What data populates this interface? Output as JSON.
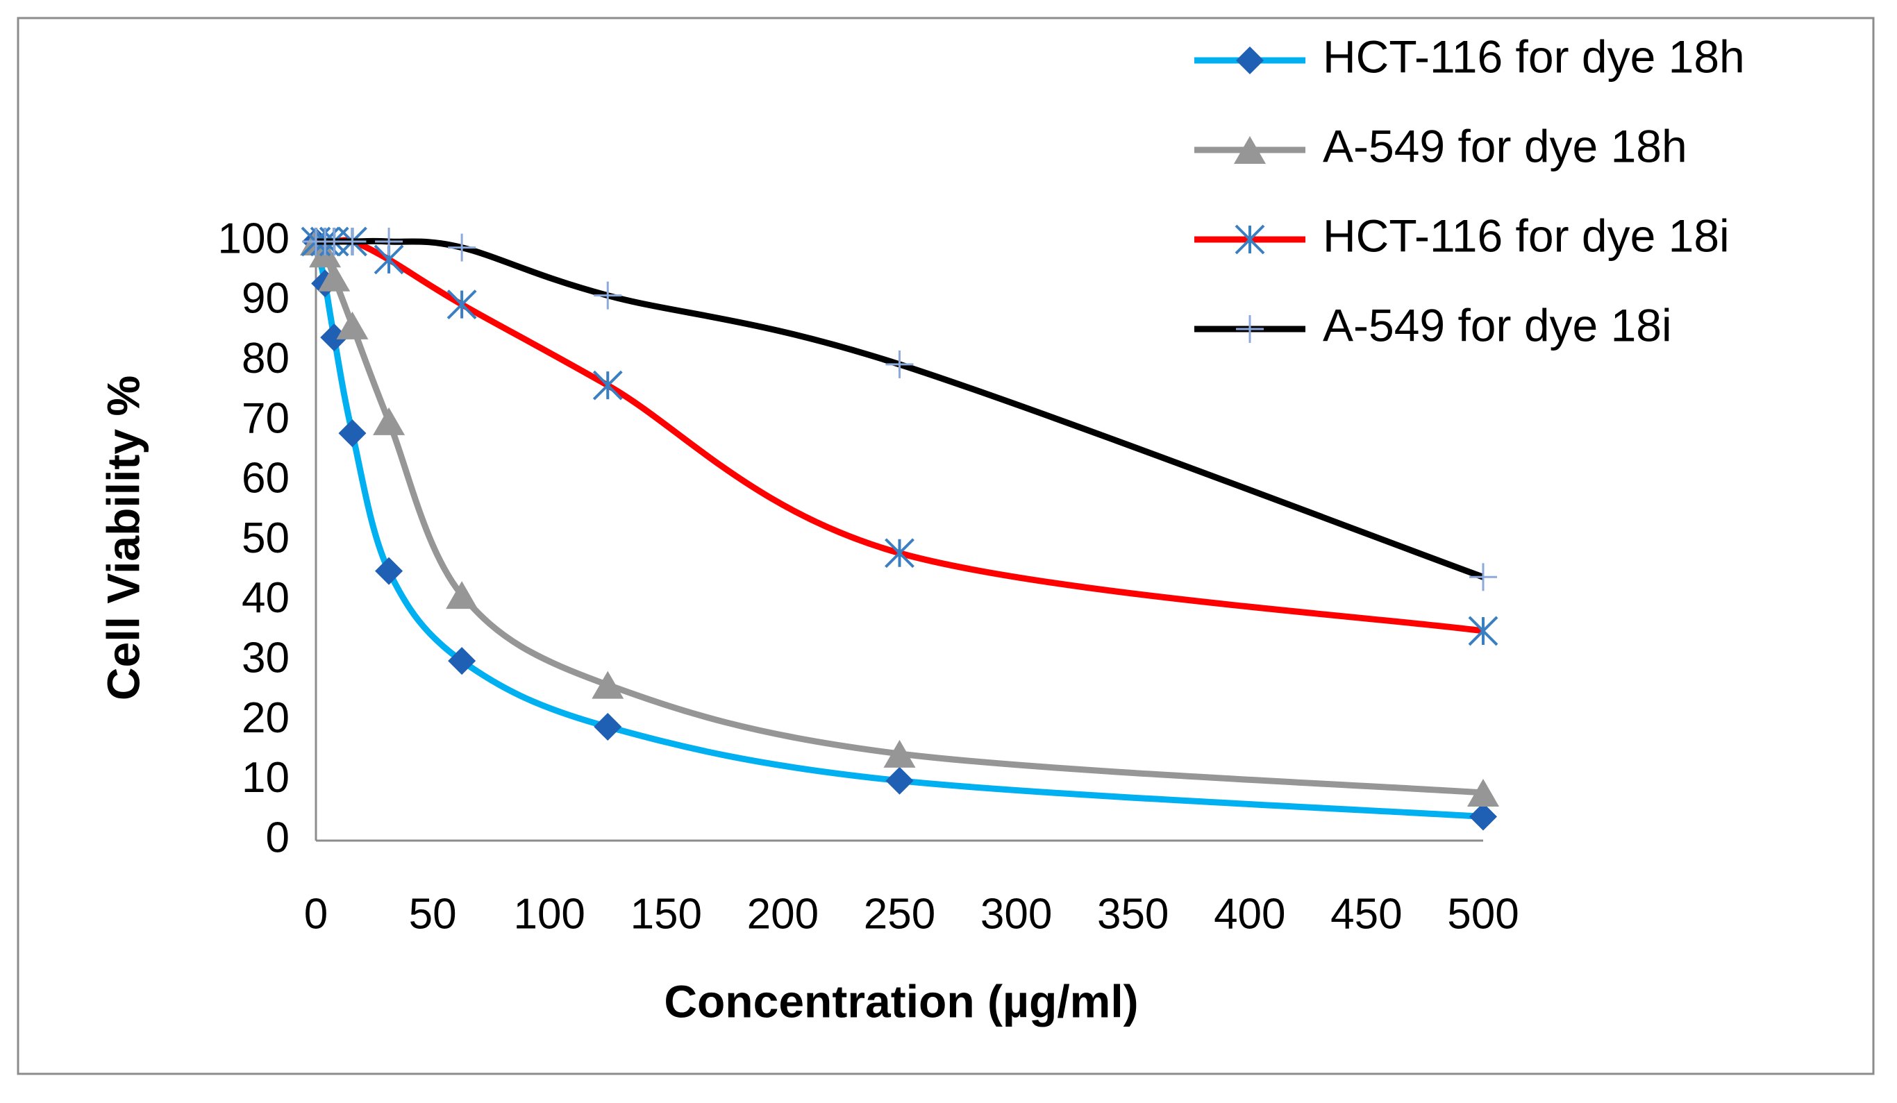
{
  "chart_data": {
    "type": "line",
    "xlabel": "Concentration (µg/ml)",
    "ylabel": "Cell  Viability  %",
    "x": [
      0,
      3.9,
      7.8,
      15.6,
      31.25,
      62.5,
      125,
      250,
      500
    ],
    "series": [
      {
        "name": "HCT-116 for dye 18h",
        "color": "#00b0f0",
        "marker": "diamond",
        "marker_color": "#1f5fb4",
        "values": [
          100,
          93,
          84,
          68,
          45,
          30,
          19,
          10,
          4
        ]
      },
      {
        "name": "A-549 for dye 18h",
        "color": "#969696",
        "marker": "triangle",
        "marker_color": "#969696",
        "values": [
          100,
          98,
          94,
          86,
          70,
          41,
          26,
          14.5,
          8
        ]
      },
      {
        "name": "HCT-116 for dye 18i",
        "color": "#ff0000",
        "marker": "asterisk",
        "marker_color": "#3a7fc1",
        "values": [
          100,
          100,
          100,
          100,
          97,
          89.5,
          76,
          48,
          35
        ]
      },
      {
        "name": "A-549 for dye 18i",
        "color": "#000000",
        "marker": "plus",
        "marker_color": "#8ea9db",
        "values": [
          100,
          100,
          100,
          100,
          100,
          99,
          91,
          79.5,
          44
        ]
      }
    ],
    "xlim": [
      0,
      500
    ],
    "xticks": [
      0,
      50,
      100,
      150,
      200,
      250,
      300,
      350,
      400,
      450,
      500
    ],
    "ylim": [
      0,
      100
    ],
    "yticks": [
      0,
      10,
      20,
      30,
      40,
      50,
      60,
      70,
      80,
      90,
      100
    ],
    "grid": false,
    "smooth": true,
    "legend": "upper right"
  }
}
